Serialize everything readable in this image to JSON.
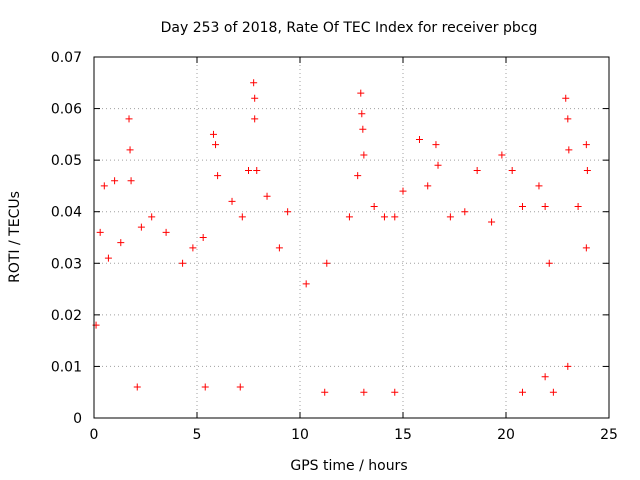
{
  "chart_data": {
    "type": "scatter",
    "title": "Day 253 of 2018, Rate Of TEC Index for receiver pbcg",
    "xlabel": "GPS time / hours",
    "ylabel": "ROTI / TECUs",
    "xlim": [
      0,
      25
    ],
    "ylim": [
      0,
      0.07
    ],
    "x_ticks": [
      "0",
      "5",
      "10",
      "15",
      "20",
      "25"
    ],
    "y_ticks": [
      "0",
      "0.01",
      "0.02",
      "0.03",
      "0.04",
      "0.05",
      "0.06",
      "0.07"
    ],
    "grid": true,
    "marker": "+",
    "series": [
      {
        "color": "#ff0000",
        "points": [
          [
            0.3,
            0.036
          ],
          [
            0.5,
            0.045
          ],
          [
            0.7,
            0.031
          ],
          [
            1.0,
            0.046
          ],
          [
            1.3,
            0.034
          ],
          [
            1.7,
            0.058
          ],
          [
            1.75,
            0.052
          ],
          [
            1.8,
            0.046
          ],
          [
            2.3,
            0.037
          ],
          [
            2.8,
            0.039
          ],
          [
            3.5,
            0.036
          ],
          [
            4.3,
            0.03
          ],
          [
            4.8,
            0.033
          ],
          [
            5.3,
            0.035
          ],
          [
            5.8,
            0.055
          ],
          [
            5.9,
            0.053
          ],
          [
            6.0,
            0.047
          ],
          [
            6.7,
            0.042
          ],
          [
            7.2,
            0.039
          ],
          [
            7.5,
            0.048
          ],
          [
            7.75,
            0.065
          ],
          [
            7.8,
            0.062
          ],
          [
            7.8,
            0.058
          ],
          [
            7.9,
            0.048
          ],
          [
            8.4,
            0.043
          ],
          [
            9.0,
            0.033
          ],
          [
            9.4,
            0.04
          ],
          [
            10.3,
            0.026
          ],
          [
            11.3,
            0.03
          ],
          [
            12.4,
            0.039
          ],
          [
            12.8,
            0.047
          ],
          [
            12.95,
            0.063
          ],
          [
            13.0,
            0.059
          ],
          [
            13.05,
            0.056
          ],
          [
            13.1,
            0.051
          ],
          [
            13.6,
            0.041
          ],
          [
            14.1,
            0.039
          ],
          [
            14.6,
            0.039
          ],
          [
            15.0,
            0.044
          ],
          [
            15.8,
            0.054
          ],
          [
            16.2,
            0.045
          ],
          [
            16.6,
            0.053
          ],
          [
            16.7,
            0.049
          ],
          [
            17.3,
            0.039
          ],
          [
            18.0,
            0.04
          ],
          [
            18.6,
            0.048
          ],
          [
            19.3,
            0.038
          ],
          [
            19.8,
            0.051
          ],
          [
            20.3,
            0.048
          ],
          [
            20.8,
            0.041
          ],
          [
            21.6,
            0.045
          ],
          [
            21.9,
            0.041
          ],
          [
            22.1,
            0.03
          ],
          [
            22.9,
            0.062
          ],
          [
            23.0,
            0.058
          ],
          [
            23.05,
            0.052
          ],
          [
            23.5,
            0.041
          ],
          [
            23.9,
            0.053
          ],
          [
            23.95,
            0.048
          ],
          [
            23.9,
            0.033
          ],
          [
            0.1,
            0.018
          ],
          [
            2.1,
            0.006
          ],
          [
            5.4,
            0.006
          ],
          [
            7.1,
            0.006
          ],
          [
            11.2,
            0.005
          ],
          [
            13.1,
            0.005
          ],
          [
            14.6,
            0.005
          ],
          [
            20.8,
            0.005
          ],
          [
            21.9,
            0.008
          ],
          [
            22.3,
            0.005
          ],
          [
            23.0,
            0.01
          ]
        ]
      }
    ]
  }
}
